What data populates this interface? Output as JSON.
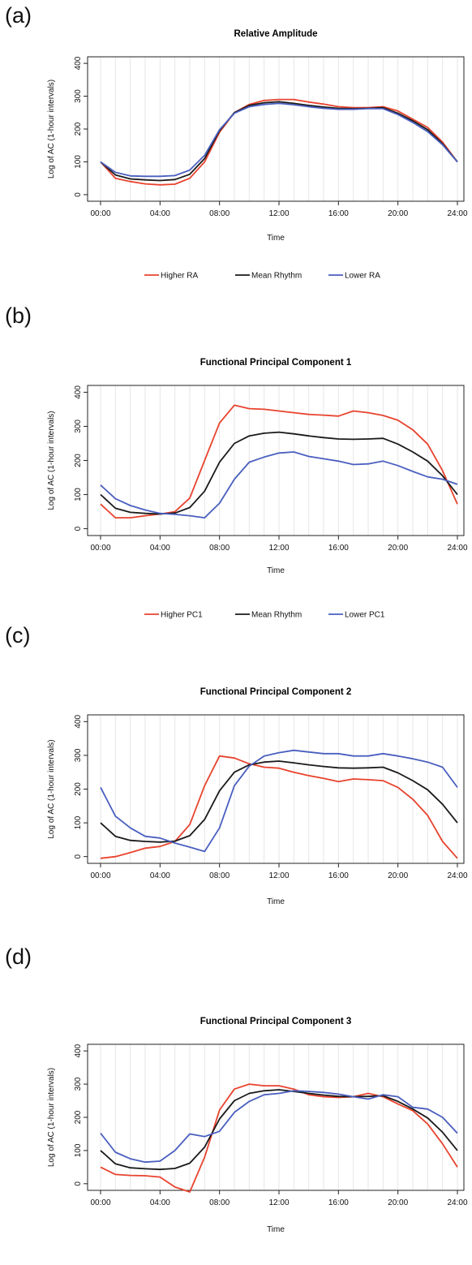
{
  "chart_data": [
    {
      "panel": "(a)",
      "type": "line",
      "title": "Relative Amplitude",
      "xlabel": "Time",
      "ylabel": "Log of AC (1-hour intervals)",
      "ylim": [
        -20,
        420
      ],
      "yticks": [
        0,
        100,
        200,
        300,
        400
      ],
      "xlim": [
        0,
        24
      ],
      "xticks": [
        0,
        4,
        8,
        12,
        16,
        20,
        24
      ],
      "xtick_labels": [
        "00:00",
        "04:00",
        "08:00",
        "12:00",
        "16:00",
        "20:00",
        "24:00"
      ],
      "grid": "vertical-hourly",
      "legend_position": "bottom",
      "x": [
        0,
        1,
        2,
        3,
        4,
        5,
        6,
        7,
        8,
        9,
        10,
        11,
        12,
        13,
        14,
        15,
        16,
        17,
        18,
        19,
        20,
        21,
        22,
        23,
        24
      ],
      "series": [
        {
          "name": "Higher RA",
          "color": "#e8432e",
          "values": [
            100,
            50,
            40,
            33,
            30,
            32,
            50,
            100,
            190,
            250,
            275,
            287,
            290,
            290,
            282,
            276,
            268,
            265,
            265,
            268,
            255,
            230,
            205,
            160,
            100
          ]
        },
        {
          "name": "Mean Rhythm",
          "color": "#1a1a1a",
          "values": [
            100,
            60,
            48,
            45,
            43,
            46,
            62,
            110,
            195,
            250,
            272,
            280,
            283,
            278,
            272,
            267,
            263,
            262,
            263,
            265,
            248,
            225,
            198,
            155,
            100
          ]
        },
        {
          "name": "Lower RA",
          "color": "#4a5fbf",
          "values": [
            100,
            68,
            57,
            56,
            56,
            58,
            75,
            120,
            198,
            248,
            268,
            275,
            278,
            274,
            268,
            263,
            260,
            260,
            262,
            262,
            244,
            220,
            192,
            152,
            100
          ]
        }
      ]
    },
    {
      "panel": "(b)",
      "type": "line",
      "title": "Functional Principal Component 1",
      "xlabel": "Time",
      "ylabel": "Log of AC (1-hour intervals)",
      "ylim": [
        -20,
        420
      ],
      "yticks": [
        0,
        100,
        200,
        300,
        400
      ],
      "xlim": [
        0,
        24
      ],
      "xticks": [
        0,
        4,
        8,
        12,
        16,
        20,
        24
      ],
      "xtick_labels": [
        "00:00",
        "04:00",
        "08:00",
        "12:00",
        "16:00",
        "20:00",
        "24:00"
      ],
      "grid": "vertical-hourly",
      "legend_position": "bottom",
      "x": [
        0,
        1,
        2,
        3,
        4,
        5,
        6,
        7,
        8,
        9,
        10,
        11,
        12,
        13,
        14,
        15,
        16,
        17,
        18,
        19,
        20,
        21,
        22,
        23,
        24
      ],
      "series": [
        {
          "name": "Higher PC1",
          "color": "#e8432e",
          "values": [
            72,
            32,
            32,
            38,
            43,
            50,
            90,
            200,
            310,
            362,
            352,
            350,
            345,
            340,
            335,
            333,
            330,
            345,
            340,
            332,
            318,
            290,
            248,
            170,
            72
          ]
        },
        {
          "name": "Mean Rhythm",
          "color": "#1a1a1a",
          "values": [
            100,
            60,
            48,
            45,
            43,
            46,
            62,
            110,
            195,
            250,
            272,
            280,
            283,
            278,
            272,
            267,
            263,
            262,
            263,
            265,
            248,
            225,
            198,
            155,
            100
          ]
        },
        {
          "name": "Lower PC1",
          "color": "#4a5fbf",
          "values": [
            128,
            88,
            68,
            55,
            45,
            42,
            38,
            32,
            75,
            145,
            195,
            210,
            222,
            225,
            212,
            205,
            198,
            188,
            190,
            198,
            185,
            168,
            152,
            145,
            130
          ]
        }
      ]
    },
    {
      "panel": "(c)",
      "type": "line",
      "title": "Functional Principal Component 2",
      "xlabel": "Time",
      "ylabel": "Log of AC (1-hour intervals)",
      "ylim": [
        -20,
        420
      ],
      "yticks": [
        0,
        100,
        200,
        300,
        400
      ],
      "xlim": [
        0,
        24
      ],
      "xticks": [
        0,
        4,
        8,
        12,
        16,
        20,
        24
      ],
      "xtick_labels": [
        "00:00",
        "04:00",
        "08:00",
        "12:00",
        "16:00",
        "20:00",
        "24:00"
      ],
      "grid": "vertical-hourly",
      "legend_position": "bottom",
      "x": [
        0,
        1,
        2,
        3,
        4,
        5,
        6,
        7,
        8,
        9,
        10,
        11,
        12,
        13,
        14,
        15,
        16,
        17,
        18,
        19,
        20,
        21,
        22,
        23,
        24
      ],
      "series": [
        {
          "name": "Higher PC2",
          "color": "#e8432e",
          "values": [
            -5,
            0,
            12,
            25,
            30,
            45,
            95,
            210,
            298,
            292,
            275,
            265,
            262,
            250,
            240,
            232,
            222,
            230,
            228,
            225,
            205,
            170,
            122,
            45,
            -5
          ]
        },
        {
          "name": "Mean Rhythm",
          "color": "#1a1a1a",
          "values": [
            100,
            60,
            48,
            45,
            43,
            46,
            62,
            110,
            195,
            250,
            272,
            280,
            283,
            278,
            272,
            267,
            263,
            262,
            263,
            265,
            248,
            225,
            198,
            155,
            100
          ]
        },
        {
          "name": "Lower PC2",
          "color": "#4a5fbf",
          "values": [
            205,
            120,
            85,
            60,
            55,
            40,
            28,
            15,
            85,
            210,
            268,
            298,
            308,
            315,
            310,
            305,
            305,
            298,
            298,
            305,
            298,
            290,
            280,
            265,
            205
          ]
        }
      ]
    },
    {
      "panel": "(d)",
      "type": "line",
      "title": "Functional Principal Component 3",
      "xlabel": "Time",
      "ylabel": "Log of AC (1-hour intervals)",
      "ylim": [
        -20,
        420
      ],
      "yticks": [
        0,
        100,
        200,
        300,
        400
      ],
      "xlim": [
        0,
        24
      ],
      "xticks": [
        0,
        4,
        8,
        12,
        16,
        20,
        24
      ],
      "xtick_labels": [
        "00:00",
        "04:00",
        "08:00",
        "12:00",
        "16:00",
        "20:00",
        "24:00"
      ],
      "grid": "vertical-hourly",
      "legend_position": "bottom",
      "x": [
        0,
        1,
        2,
        3,
        4,
        5,
        6,
        7,
        8,
        9,
        10,
        11,
        12,
        13,
        14,
        15,
        16,
        17,
        18,
        19,
        20,
        21,
        22,
        23,
        24
      ],
      "series": [
        {
          "name": "Higher PC3",
          "color": "#e8432e",
          "values": [
            50,
            28,
            25,
            24,
            20,
            -10,
            -25,
            80,
            222,
            285,
            300,
            295,
            295,
            285,
            268,
            262,
            260,
            262,
            272,
            262,
            240,
            220,
            180,
            120,
            50
          ]
        },
        {
          "name": "Mean Rhythm",
          "color": "#1a1a1a",
          "values": [
            100,
            60,
            48,
            45,
            43,
            46,
            62,
            110,
            195,
            250,
            272,
            280,
            283,
            278,
            272,
            267,
            263,
            262,
            263,
            265,
            248,
            225,
            198,
            155,
            100
          ]
        },
        {
          "name": "Lower PC3",
          "color": "#4a5fbf",
          "values": [
            152,
            95,
            75,
            65,
            68,
            100,
            150,
            142,
            158,
            215,
            248,
            268,
            272,
            280,
            278,
            275,
            270,
            262,
            255,
            268,
            262,
            230,
            225,
            200,
            152
          ]
        }
      ]
    }
  ]
}
